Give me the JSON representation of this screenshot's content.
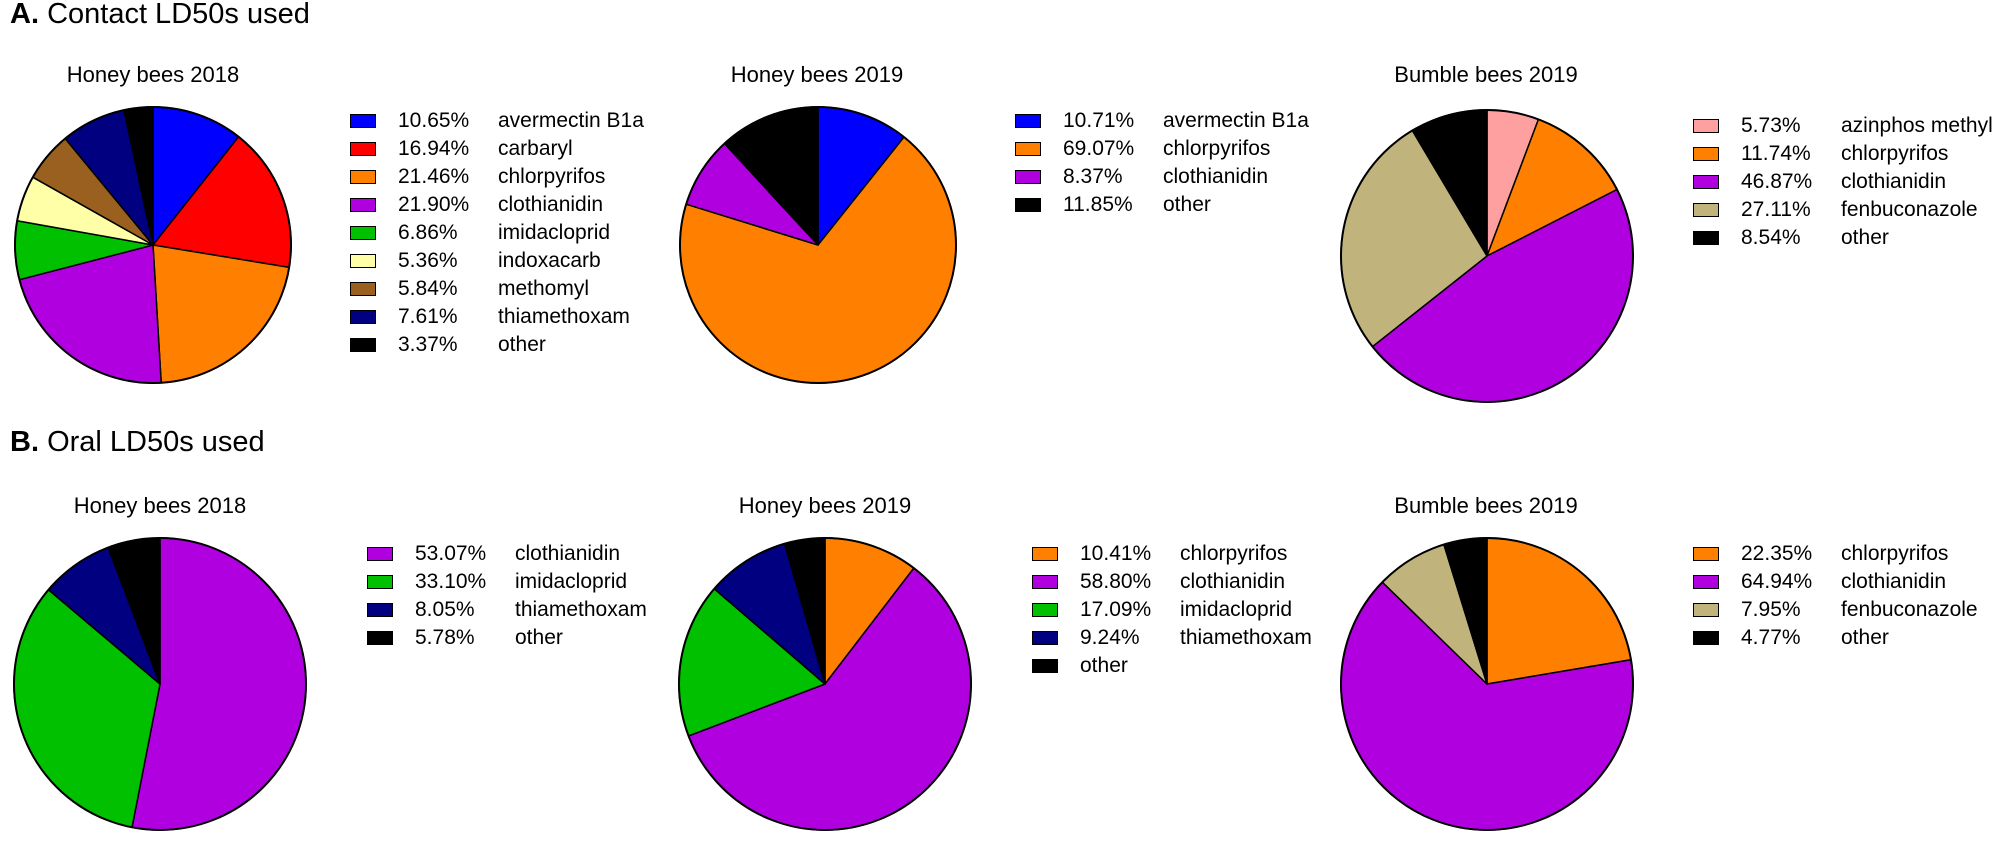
{
  "sections": {
    "contact": {
      "letter": "A.",
      "title": "Contact LD50s used"
    },
    "oral": {
      "letter": "B.",
      "title": "Oral LD50s used"
    }
  },
  "chart_data": [
    {
      "type": "pie",
      "title": "Honey bees 2018",
      "section": "Contact LD50s used",
      "slices": [
        {
          "pct": "10.65%",
          "label": "avermectin B1a",
          "value": 10.65,
          "color": "#0000ff"
        },
        {
          "pct": "16.94%",
          "label": "carbaryl",
          "value": 16.94,
          "color": "#ff0000"
        },
        {
          "pct": "21.46%",
          "label": "chlorpyrifos",
          "value": 21.46,
          "color": "#ff8000"
        },
        {
          "pct": "21.90%",
          "label": "clothianidin",
          "value": 21.9,
          "color": "#b000e0"
        },
        {
          "pct": "6.86%",
          "label": "imidacloprid",
          "value": 6.86,
          "color": "#00c000"
        },
        {
          "pct": "5.36%",
          "label": "indoxacarb",
          "value": 5.36,
          "color": "#ffffa8"
        },
        {
          "pct": "5.84%",
          "label": "methomyl",
          "value": 5.84,
          "color": "#996020"
        },
        {
          "pct": "7.61%",
          "label": "thiamethoxam",
          "value": 7.61,
          "color": "#000080"
        },
        {
          "pct": "3.37%",
          "label": "other",
          "value": 3.37,
          "color": "#000000"
        }
      ]
    },
    {
      "type": "pie",
      "title": "Honey bees 2019",
      "section": "Contact LD50s used",
      "slices": [
        {
          "pct": "10.71%",
          "label": "avermectin B1a",
          "value": 10.71,
          "color": "#0000ff"
        },
        {
          "pct": "69.07%",
          "label": "chlorpyrifos",
          "value": 69.07,
          "color": "#ff8000"
        },
        {
          "pct": "8.37%",
          "label": "clothianidin",
          "value": 8.37,
          "color": "#b000e0"
        },
        {
          "pct": "11.85%",
          "label": "other",
          "value": 11.85,
          "color": "#000000"
        }
      ]
    },
    {
      "type": "pie",
      "title": "Bumble bees 2019",
      "section": "Contact LD50s used",
      "slices": [
        {
          "pct": "5.73%",
          "label": "azinphos methyl",
          "value": 5.73,
          "color": "#ffa0a0"
        },
        {
          "pct": "11.74%",
          "label": "chlorpyrifos",
          "value": 11.74,
          "color": "#ff8000"
        },
        {
          "pct": "46.87%",
          "label": "clothianidin",
          "value": 46.87,
          "color": "#b000e0"
        },
        {
          "pct": "27.11%",
          "label": "fenbuconazole",
          "value": 27.11,
          "color": "#c0b47c"
        },
        {
          "pct": "8.54%",
          "label": "other",
          "value": 8.54,
          "color": "#000000"
        }
      ]
    },
    {
      "type": "pie",
      "title": "Honey bees 2018",
      "section": "Oral LD50s used",
      "slices": [
        {
          "pct": "53.07%",
          "label": "clothianidin",
          "value": 53.07,
          "color": "#b000e0"
        },
        {
          "pct": "33.10%",
          "label": "imidacloprid",
          "value": 33.1,
          "color": "#00c000"
        },
        {
          "pct": "8.05%",
          "label": "thiamethoxam",
          "value": 8.05,
          "color": "#000080"
        },
        {
          "pct": "5.78%",
          "label": "other",
          "value": 5.78,
          "color": "#000000"
        }
      ]
    },
    {
      "type": "pie",
      "title": "Honey bees 2019",
      "section": "Oral LD50s used",
      "slices": [
        {
          "pct": "10.41%",
          "label": "chlorpyrifos",
          "value": 10.41,
          "color": "#ff8000"
        },
        {
          "pct": "58.80%",
          "label": "clothianidin",
          "value": 58.8,
          "color": "#b000e0"
        },
        {
          "pct": "17.09%",
          "label": "imidacloprid",
          "value": 17.09,
          "color": "#00c000"
        },
        {
          "pct": "9.24%",
          "label": "thiamethoxam",
          "value": 9.24,
          "color": "#000080"
        },
        {
          "pct": "",
          "label": "other",
          "value": 4.46,
          "color": "#000000"
        }
      ]
    },
    {
      "type": "pie",
      "title": "Bumble bees 2019",
      "section": "Oral LD50s used",
      "slices": [
        {
          "pct": "22.35%",
          "label": "chlorpyrifos",
          "value": 22.35,
          "color": "#ff8000"
        },
        {
          "pct": "64.94%",
          "label": "clothianidin",
          "value": 64.94,
          "color": "#b000e0"
        },
        {
          "pct": "7.95%",
          "label": "fenbuconazole",
          "value": 7.95,
          "color": "#c0b47c"
        },
        {
          "pct": "4.77%",
          "label": "other",
          "value": 4.77,
          "color": "#000000"
        }
      ]
    }
  ]
}
